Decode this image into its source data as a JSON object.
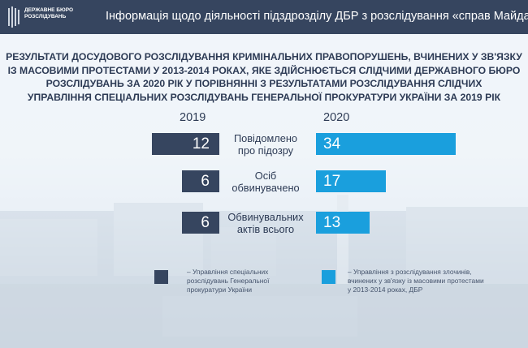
{
  "header": {
    "logo_line1": "ДЕРЖАВНЕ БЮРО",
    "logo_line2": "РОЗСЛІДУВАНЬ",
    "title": "Інформація щодо діяльності підздрозділу ДБР з розслідування «справ Майдану»"
  },
  "main_title": {
    "line1": "Результати досудового розслідування кримінальних правопорушень, вчинених у зв'язку",
    "line2": "із масовими протестами у 2013-2014 роках, яке здійснюється слідчими Державного бюро",
    "line3": "розслідувань за 2020 рік у порівнянні з результатами розслідування слідчих",
    "line4": "управління спеціальних розслідувань Генеральної прокуратури України за 2019 рік"
  },
  "chart_data": {
    "type": "bar",
    "categories": [
      "Повідомлено про підозру",
      "Осіб обвинувачено",
      "Обвинувальних актів всього"
    ],
    "series": [
      {
        "name": "2019",
        "values": [
          12,
          6,
          6
        ]
      },
      {
        "name": "2020",
        "values": [
          34,
          17,
          13
        ]
      }
    ],
    "category_lines": [
      [
        "Повідомлено",
        "про підозру"
      ],
      [
        "Осіб",
        "обвинувачено"
      ],
      [
        "Обвинувальних",
        "актів всього"
      ]
    ],
    "year_labels": [
      "2019",
      "2020"
    ],
    "colors": {
      "2019": "#36455f",
      "2020": "#1a9fdd"
    }
  },
  "legend": {
    "item_2019": {
      "line1": "– Управління спеціальних",
      "line2": "розслідувань Генеральної",
      "line3": "прокуратури України"
    },
    "item_2020": {
      "line1": "– Управління з розслідування злочинів,",
      "line2": "вчинених у зв'язку із  масовими протестами",
      "line3": "у 2013-2014 роках, ДБР"
    }
  }
}
